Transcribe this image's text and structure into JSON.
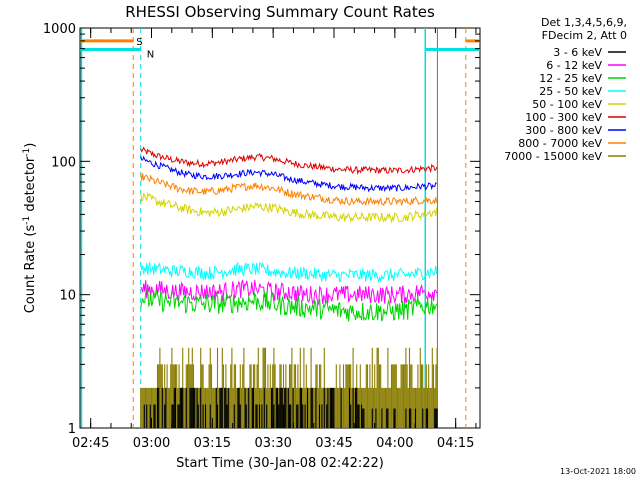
{
  "chart_data": {
    "type": "line",
    "title": "RHESSI Observing Summary Count Rates",
    "xlabel": "Start Time (30-Jan-08 02:42:22)",
    "ylabel": "Count Rate (s",
    "ylabel_sup1": "-1",
    "ylabel_mid": " detector",
    "ylabel_sup2": "-1",
    "ylabel_end": ")",
    "y_scale": "log",
    "ylim": [
      1,
      1000
    ],
    "xlim": [
      "02:42:22",
      "04:21:00"
    ],
    "x_ticks": [
      "02:45",
      "03:00",
      "03:15",
      "03:30",
      "03:45",
      "04:00",
      "04:15"
    ],
    "y_ticks": [
      "1",
      "10",
      "100",
      "1000"
    ],
    "footer_date": "13-Oct-2021 18:00",
    "legend": {
      "placement": "top-right",
      "header": [
        "Det 1,3,4,5,6,9,",
        "FDecim 2, Att 0"
      ],
      "entries": [
        {
          "label": "3 - 6 keV",
          "color": "#000000"
        },
        {
          "label": "6 - 12 keV",
          "color": "#ff00ff"
        },
        {
          "label": "12 - 25 keV",
          "color": "#00d400"
        },
        {
          "label": "25 - 50 keV",
          "color": "#00ffff"
        },
        {
          "label": "50 - 100 keV",
          "color": "#d4d400"
        },
        {
          "label": "100 - 300 keV",
          "color": "#e00000"
        },
        {
          "label": "300 - 800 keV",
          "color": "#0000ff"
        },
        {
          "label": "800 - 7000 keV",
          "color": "#ff8000"
        },
        {
          "label": "7000 - 15000 keV",
          "color": "#8b7d00"
        }
      ]
    },
    "flags": [
      {
        "label": "S",
        "color": "#ff8000"
      },
      {
        "label": "N",
        "color": "#00e0e0"
      }
    ],
    "markers": {
      "saa_start": "02:44:00",
      "saa_end": "02:55:30",
      "night_end": "02:57:20",
      "night_start": "04:07:30",
      "saa_start_2": "04:17:30",
      "data_end": "04:10:30",
      "level_saa": 800,
      "level_night": 690
    },
    "series": [
      {
        "name": "100 - 300 keV",
        "color": "#e00000",
        "t_start": "02:57:20",
        "t_end": "04:10:30",
        "values": [
          122,
          110,
          102,
          97,
          96,
          99,
          104,
          108,
          105,
          98,
          93,
          90,
          87,
          86,
          86,
          85,
          86,
          88,
          89
        ]
      },
      {
        "name": "300 - 800 keV",
        "color": "#0000ff",
        "t_start": "02:57:20",
        "t_end": "04:10:30",
        "values": [
          104,
          94,
          85,
          79,
          77,
          78,
          81,
          83,
          80,
          74,
          70,
          67,
          65,
          64,
          63,
          63,
          63,
          65,
          65
        ]
      },
      {
        "name": "800 - 7000 keV",
        "color": "#ff8000",
        "t_start": "02:57:20",
        "t_end": "04:10:30",
        "values": [
          77,
          70,
          64,
          60,
          59,
          61,
          64,
          66,
          63,
          58,
          55,
          53,
          51,
          50,
          50,
          50,
          50,
          51,
          51
        ]
      },
      {
        "name": "50 - 100 keV",
        "color": "#d4d400",
        "t_start": "02:57:20",
        "t_end": "04:10:30",
        "values": [
          55,
          50,
          46,
          43,
          41,
          42,
          44,
          46,
          45,
          42,
          40,
          39,
          38,
          38,
          38,
          38,
          38,
          40,
          42
        ]
      },
      {
        "name": "25 - 50 keV",
        "color": "#00ffff",
        "t_start": "02:57:20",
        "t_end": "04:10:30",
        "values": [
          16,
          15.5,
          15,
          15,
          14.5,
          15,
          15.5,
          15.5,
          15,
          14.5,
          14.5,
          14,
          14,
          14,
          14,
          14,
          14,
          14.5,
          15
        ]
      },
      {
        "name": "6 - 12 keV",
        "color": "#ff00ff",
        "t_start": "02:57:20",
        "t_end": "04:10:30",
        "values": [
          11,
          11,
          10.5,
          10.5,
          10.5,
          10.5,
          11,
          11,
          10.5,
          10.5,
          10,
          10,
          10,
          10,
          10,
          10,
          10,
          10.5,
          10.5
        ]
      },
      {
        "name": "12 - 25 keV",
        "color": "#00d400",
        "t_start": "02:57:20",
        "t_end": "04:10:30",
        "values": [
          9.5,
          9,
          8.8,
          8.6,
          8.5,
          8.6,
          8.8,
          9,
          8.6,
          8.2,
          8,
          7.8,
          7.6,
          7.5,
          7.5,
          7.5,
          7.6,
          8.2,
          8.5
        ]
      },
      {
        "name": "7000 - 15000 keV",
        "color": "#8b7d00",
        "t_start": "02:57:20",
        "t_end": "04:10:30",
        "values": [
          2.5,
          2.5,
          2.5,
          2.5,
          2.5,
          2.5,
          3,
          2.5,
          3,
          2.5,
          2.5,
          2.5,
          2.5,
          2.5,
          2.5,
          2.5,
          2.5,
          2.5,
          2.5
        ]
      },
      {
        "name": "3 - 6 keV",
        "color": "#000000",
        "t_start": "02:57:20",
        "t_end": "04:10:30",
        "values": [
          1.5,
          1.5,
          2,
          2,
          1.5,
          2,
          2,
          2,
          1.5,
          1.5,
          1.5,
          1.5,
          1,
          1,
          1,
          1,
          1,
          1.5,
          1.5
        ]
      }
    ]
  }
}
